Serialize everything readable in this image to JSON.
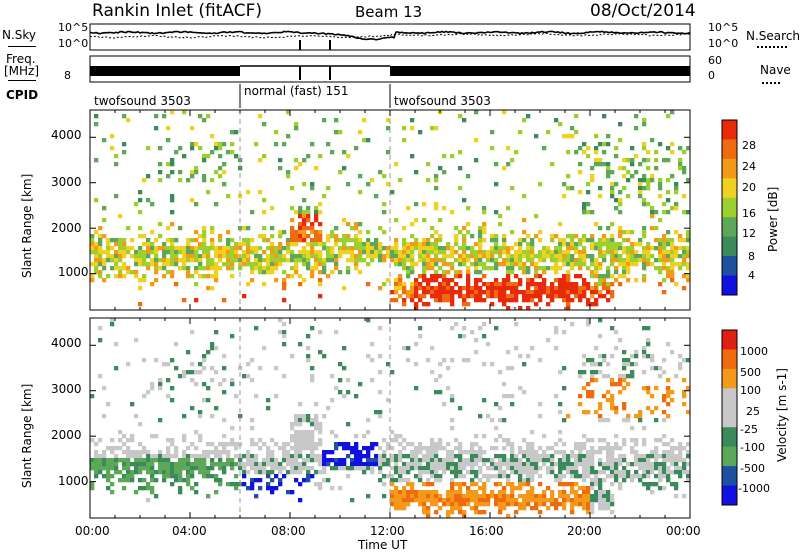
{
  "header": {
    "radar": "Rankin Inlet (fitACF)",
    "beam": "Beam 13",
    "date": "08/Oct/2014"
  },
  "top_panel": {
    "nsky_label": "N.Sky",
    "nsearch_label": "N.Search",
    "freq_label_1": "Freq.",
    "freq_label_2": "[MHz]",
    "nave_label": "Nave",
    "cpid_label": "CPID",
    "left_ticks": [
      "10^5",
      "10^0",
      "8"
    ],
    "right_ticks": [
      "10^5",
      "10^0",
      "60",
      "0"
    ],
    "cpid_segments": [
      "twofsound 3503",
      "normal (fast) 151",
      "twofsound 3503"
    ]
  },
  "colors": {
    "power": [
      "#1010e0",
      "#1e4fa0",
      "#3a8a5a",
      "#5ca858",
      "#9bd02e",
      "#f0d020",
      "#f59a18",
      "#f06a10",
      "#e82a0a"
    ],
    "velocity": [
      "#e02010",
      "#f06a10",
      "#f59a18",
      "#c8c8c8",
      "#c8c8c8",
      "#3a8a5a",
      "#5ca858",
      "#1e4fa0",
      "#1010e0"
    ]
  },
  "chart_data": [
    {
      "type": "heatmap",
      "title": "Power",
      "ylabel": "Slant Range [km]",
      "xlabel": "Time UT",
      "x_ticks": [
        "00:00",
        "04:00",
        "08:00",
        "12:00",
        "16:00",
        "20:00",
        "00:00"
      ],
      "y_ticks": [
        1000,
        2000,
        3000,
        4000
      ],
      "ylim": [
        200,
        4600
      ],
      "colorbar_label": "Power [dB]",
      "colorbar_ticks": [
        "28",
        "24",
        "20",
        "16",
        "12",
        "8",
        "4"
      ]
    },
    {
      "type": "heatmap",
      "title": "Velocity",
      "ylabel": "Slant Range [km]",
      "xlabel": "Time UT",
      "x_ticks": [
        "00:00",
        "04:00",
        "08:00",
        "12:00",
        "16:00",
        "20:00",
        "00:00"
      ],
      "y_ticks": [
        1000,
        2000,
        3000,
        4000
      ],
      "ylim": [
        200,
        4600
      ],
      "colorbar_label": "Velocity [m s-1]",
      "colorbar_ticks": [
        "1000",
        "500",
        "100",
        "25",
        "-25",
        "-100",
        "-500",
        "-1000"
      ]
    }
  ]
}
